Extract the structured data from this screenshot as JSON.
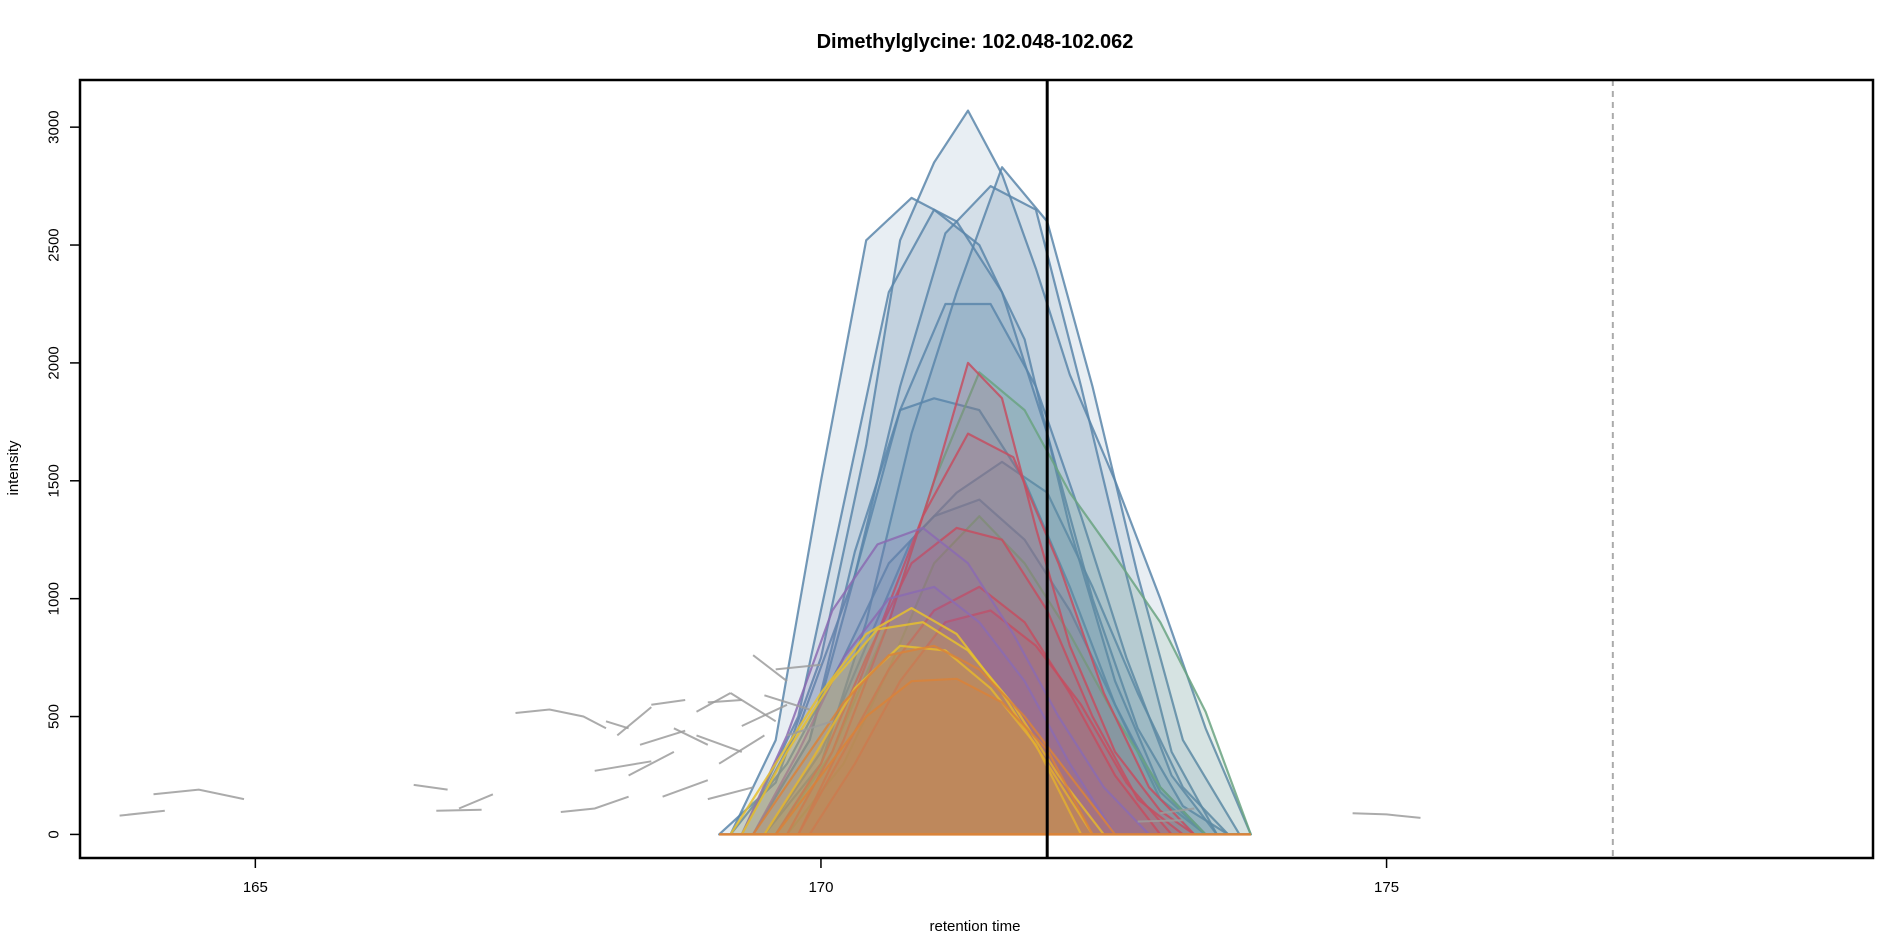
{
  "chart_data": {
    "type": "area",
    "title": "Dimethylglycine: 102.048-102.062",
    "xlabel": "retention time",
    "ylabel": "intensity",
    "xlim": [
      163.45,
      179.3
    ],
    "ylim": [
      -100,
      3200
    ],
    "x_ticks": [
      165,
      170,
      175
    ],
    "y_ticks": [
      0,
      500,
      1000,
      1500,
      2000,
      2500,
      3000
    ],
    "x_tick_labels": [
      "165",
      "170",
      "175"
    ],
    "y_tick_labels": [
      "0",
      "500",
      "1000",
      "1500",
      "2000",
      "2500",
      "3000"
    ],
    "grid": false,
    "vline_solid": 172.0,
    "vline_dashed": 177.0,
    "baseline_range": [
      169.1,
      173.8
    ],
    "colors": {
      "blue": "#5a86aa",
      "green": "#6aa381",
      "red": "#c44f62",
      "purple": "#8b6bb2",
      "yellow": "#e6bf2e",
      "orange": "#d9833a",
      "gray": "#9c9c9c",
      "dashed": "#aaaaaa"
    },
    "series": [
      {
        "group": "blue",
        "x": [
          169.1,
          169.6,
          170.0,
          170.4,
          170.7,
          171.0,
          171.3,
          171.6,
          171.9,
          172.2,
          172.6,
          173.0,
          173.4,
          173.8
        ],
        "values": [
          0,
          220,
          750,
          1650,
          2520,
          2850,
          3070,
          2800,
          2400,
          1950,
          1500,
          1000,
          450,
          0
        ]
      },
      {
        "group": "blue",
        "x": [
          169.2,
          169.6,
          170.0,
          170.4,
          170.8,
          171.2,
          171.6,
          172.0,
          172.4,
          172.8,
          173.2,
          173.6
        ],
        "values": [
          0,
          400,
          1500,
          2520,
          2700,
          2600,
          2300,
          1700,
          1000,
          450,
          120,
          0
        ]
      },
      {
        "group": "blue",
        "x": [
          169.3,
          169.8,
          170.2,
          170.6,
          171.0,
          171.4,
          171.8,
          172.2,
          172.6,
          173.0,
          173.4
        ],
        "values": [
          0,
          500,
          1400,
          2300,
          2650,
          2500,
          2100,
          1300,
          650,
          200,
          0
        ]
      },
      {
        "group": "blue",
        "x": [
          169.4,
          169.9,
          170.3,
          170.7,
          171.1,
          171.5,
          171.9,
          172.3,
          172.7,
          173.1,
          173.5
        ],
        "values": [
          0,
          400,
          1100,
          1900,
          2550,
          2750,
          2650,
          1900,
          1100,
          350,
          0
        ]
      },
      {
        "group": "blue",
        "x": [
          169.5,
          170.0,
          170.4,
          170.8,
          171.2,
          171.6,
          172.0,
          172.4,
          172.8,
          173.2,
          173.7
        ],
        "values": [
          0,
          300,
          900,
          1700,
          2300,
          2830,
          2600,
          1900,
          1100,
          400,
          0
        ]
      },
      {
        "group": "blue",
        "x": [
          169.3,
          169.8,
          170.3,
          170.7,
          171.1,
          171.5,
          171.9,
          172.3,
          172.7,
          173.1,
          173.5
        ],
        "values": [
          0,
          450,
          1100,
          1800,
          2250,
          2250,
          1900,
          1350,
          750,
          250,
          0
        ]
      },
      {
        "group": "blue",
        "x": [
          169.4,
          169.9,
          170.3,
          170.7,
          171.0,
          171.4,
          171.8,
          172.2,
          172.6,
          173.0,
          173.4
        ],
        "values": [
          0,
          400,
          1200,
          1800,
          1850,
          1800,
          1500,
          1050,
          550,
          150,
          0
        ]
      },
      {
        "group": "blue",
        "x": [
          169.5,
          170.0,
          170.4,
          170.8,
          171.2,
          171.6,
          172.0,
          172.4,
          172.8,
          173.2,
          173.6
        ],
        "values": [
          0,
          350,
          800,
          1250,
          1450,
          1580,
          1450,
          1050,
          600,
          200,
          0
        ]
      },
      {
        "group": "blue",
        "x": [
          169.2,
          169.7,
          170.2,
          170.6,
          171.0,
          171.4,
          171.8,
          172.2,
          172.6,
          173.0,
          173.4
        ],
        "values": [
          0,
          300,
          750,
          1150,
          1350,
          1420,
          1250,
          950,
          550,
          180,
          0
        ]
      },
      {
        "group": "green",
        "x": [
          169.6,
          170.1,
          170.6,
          171.0,
          171.4,
          171.8,
          172.2,
          172.6,
          173.0,
          173.4,
          173.8
        ],
        "values": [
          0,
          350,
          900,
          1500,
          1960,
          1800,
          1450,
          1180,
          900,
          520,
          0
        ]
      },
      {
        "group": "green",
        "x": [
          169.7,
          170.2,
          170.6,
          171.0,
          171.4,
          171.8,
          172.2,
          172.6,
          173.0,
          173.4
        ],
        "values": [
          0,
          300,
          700,
          1150,
          1350,
          1150,
          850,
          500,
          200,
          0
        ]
      },
      {
        "group": "red",
        "x": [
          169.8,
          170.2,
          170.6,
          171.0,
          171.3,
          171.6,
          171.9,
          172.2,
          172.6,
          173.0,
          173.3
        ],
        "values": [
          0,
          400,
          900,
          1500,
          2000,
          1850,
          1300,
          800,
          350,
          100,
          0
        ]
      },
      {
        "group": "red",
        "x": [
          169.7,
          170.1,
          170.5,
          170.9,
          171.3,
          171.7,
          172.1,
          172.5,
          172.9,
          173.3
        ],
        "values": [
          0,
          350,
          850,
          1350,
          1700,
          1600,
          1150,
          600,
          200,
          0
        ]
      },
      {
        "group": "red",
        "x": [
          169.6,
          170.0,
          170.4,
          170.8,
          171.2,
          171.6,
          172.0,
          172.4,
          172.8,
          173.2
        ],
        "values": [
          0,
          300,
          750,
          1150,
          1300,
          1250,
          950,
          500,
          150,
          0
        ]
      },
      {
        "group": "red",
        "x": [
          169.8,
          170.2,
          170.6,
          171.0,
          171.4,
          171.8,
          172.2,
          172.6,
          173.0
        ],
        "values": [
          0,
          350,
          700,
          950,
          1050,
          900,
          600,
          250,
          0
        ]
      },
      {
        "group": "red",
        "x": [
          169.9,
          170.3,
          170.7,
          171.1,
          171.5,
          171.9,
          172.3,
          172.7,
          173.1
        ],
        "values": [
          0,
          300,
          650,
          900,
          950,
          800,
          550,
          220,
          0
        ]
      },
      {
        "group": "purple",
        "x": [
          169.3,
          169.7,
          170.1,
          170.5,
          170.9,
          171.3,
          171.7,
          172.1,
          172.5,
          172.9
        ],
        "values": [
          0,
          420,
          950,
          1230,
          1300,
          1150,
          850,
          500,
          200,
          0
        ]
      },
      {
        "group": "purple",
        "x": [
          169.4,
          169.8,
          170.2,
          170.6,
          171.0,
          171.4,
          171.8,
          172.2,
          172.6
        ],
        "values": [
          0,
          350,
          750,
          1000,
          1050,
          900,
          650,
          300,
          0
        ]
      },
      {
        "group": "yellow",
        "x": [
          169.2,
          169.6,
          170.0,
          170.4,
          170.8,
          171.2,
          171.6,
          172.0,
          172.4
        ],
        "values": [
          0,
          300,
          600,
          850,
          960,
          850,
          600,
          300,
          0
        ]
      },
      {
        "group": "yellow",
        "x": [
          169.3,
          169.7,
          170.1,
          170.5,
          170.9,
          171.3,
          171.7,
          172.1,
          172.5
        ],
        "values": [
          0,
          350,
          650,
          870,
          900,
          780,
          550,
          250,
          0
        ]
      },
      {
        "group": "yellow",
        "x": [
          169.5,
          169.9,
          170.3,
          170.7,
          171.1,
          171.5,
          171.9,
          172.3
        ],
        "values": [
          0,
          300,
          620,
          800,
          780,
          620,
          380,
          0
        ]
      },
      {
        "group": "orange",
        "x": [
          169.4,
          169.8,
          170.2,
          170.6,
          171.0,
          171.4,
          171.8,
          172.2,
          172.6
        ],
        "values": [
          0,
          280,
          560,
          760,
          800,
          700,
          500,
          250,
          0
        ]
      },
      {
        "group": "orange",
        "x": [
          169.6,
          170.0,
          170.4,
          170.8,
          171.2,
          171.6,
          172.0,
          172.4
        ],
        "values": [
          0,
          250,
          500,
          650,
          660,
          560,
          360,
          0
        ]
      }
    ],
    "noise_segments": [
      [
        [
          163.8,
          80
        ],
        [
          164.2,
          100
        ]
      ],
      [
        [
          164.1,
          170
        ],
        [
          164.5,
          190
        ],
        [
          164.9,
          150
        ]
      ],
      [
        [
          166.4,
          210
        ],
        [
          166.7,
          190
        ]
      ],
      [
        [
          166.6,
          100
        ],
        [
          167.0,
          105
        ]
      ],
      [
        [
          166.8,
          110
        ],
        [
          167.1,
          170
        ]
      ],
      [
        [
          167.3,
          515
        ],
        [
          167.6,
          530
        ],
        [
          167.9,
          500
        ],
        [
          168.1,
          450
        ]
      ],
      [
        [
          167.7,
          95
        ],
        [
          168.0,
          110
        ],
        [
          168.3,
          160
        ]
      ],
      [
        [
          168.1,
          480
        ],
        [
          168.3,
          450
        ]
      ],
      [
        [
          168.2,
          420
        ],
        [
          168.5,
          540
        ]
      ],
      [
        [
          168.3,
          250
        ],
        [
          168.7,
          350
        ]
      ],
      [
        [
          168.5,
          550
        ],
        [
          168.8,
          570
        ]
      ],
      [
        [
          168.7,
          450
        ],
        [
          169.0,
          380
        ]
      ],
      [
        [
          168.9,
          520
        ],
        [
          169.2,
          600
        ]
      ],
      [
        [
          169.0,
          560
        ],
        [
          169.3,
          570
        ]
      ],
      [
        [
          169.1,
          300
        ],
        [
          169.5,
          420
        ]
      ],
      [
        [
          169.2,
          600
        ],
        [
          169.6,
          480
        ]
      ],
      [
        [
          169.3,
          460
        ],
        [
          169.7,
          550
        ]
      ],
      [
        [
          169.4,
          760
        ],
        [
          169.7,
          650
        ]
      ],
      [
        [
          168.0,
          270
        ],
        [
          168.5,
          310
        ]
      ],
      [
        [
          168.4,
          380
        ],
        [
          168.8,
          440
        ]
      ],
      [
        [
          168.6,
          160
        ],
        [
          169.0,
          230
        ]
      ],
      [
        [
          168.9,
          420
        ],
        [
          169.3,
          350
        ]
      ],
      [
        [
          169.0,
          150
        ],
        [
          169.4,
          200
        ]
      ],
      [
        [
          169.5,
          590
        ],
        [
          169.9,
          530
        ]
      ],
      [
        [
          169.6,
          700
        ],
        [
          170.0,
          720
        ]
      ],
      [
        [
          169.7,
          420
        ],
        [
          170.1,
          480
        ]
      ],
      [
        [
          174.7,
          90
        ],
        [
          175.0,
          85
        ],
        [
          175.3,
          70
        ]
      ],
      [
        [
          173.0,
          90
        ],
        [
          173.3,
          110
        ]
      ],
      [
        [
          172.8,
          55
        ],
        [
          173.2,
          60
        ]
      ]
    ]
  }
}
